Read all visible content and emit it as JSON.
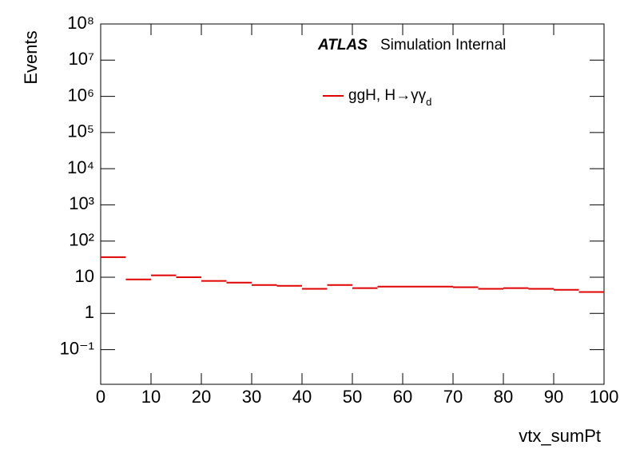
{
  "chart_data": {
    "type": "histogram",
    "title": "",
    "annotations": [
      "ATLAS",
      "Simulation Internal"
    ],
    "x_label": "vtx_sumPt",
    "y_label": "Events",
    "bins": [
      0,
      5,
      10,
      15,
      20,
      25,
      30,
      35,
      40,
      45,
      50,
      55,
      60,
      65,
      70,
      75,
      80,
      85,
      90,
      95,
      100
    ],
    "series": [
      {
        "name": "ggH, H→γγd",
        "color": "#e00000",
        "values": [
          36,
          8.7,
          11.3,
          10,
          7.9,
          7.1,
          6.1,
          5.8,
          4.8,
          6.1,
          5.0,
          5.5,
          5.5,
          5.5,
          5.3,
          4.8,
          5.0,
          4.8,
          4.5,
          3.9
        ]
      }
    ],
    "xlim": [
      0,
      100
    ],
    "xticks": [
      0,
      10,
      20,
      30,
      40,
      50,
      60,
      70,
      80,
      90,
      100
    ],
    "ylim": [
      0.011,
      100000000
    ],
    "log_y": true,
    "yticks": [
      {
        "value": 0.1,
        "label": "10⁻¹"
      },
      1,
      10,
      {
        "value": 100,
        "label": "10²"
      },
      {
        "value": 1000,
        "label": "10³"
      },
      {
        "value": 10000,
        "label": "10⁴"
      },
      {
        "value": 100000,
        "label": "10⁵"
      },
      {
        "value": 1000000,
        "label": "10⁶"
      },
      {
        "value": 10000000,
        "label": "10⁷"
      },
      {
        "value": 100000000,
        "label": "10⁸"
      }
    ],
    "grid": false,
    "legend": "top-right"
  }
}
